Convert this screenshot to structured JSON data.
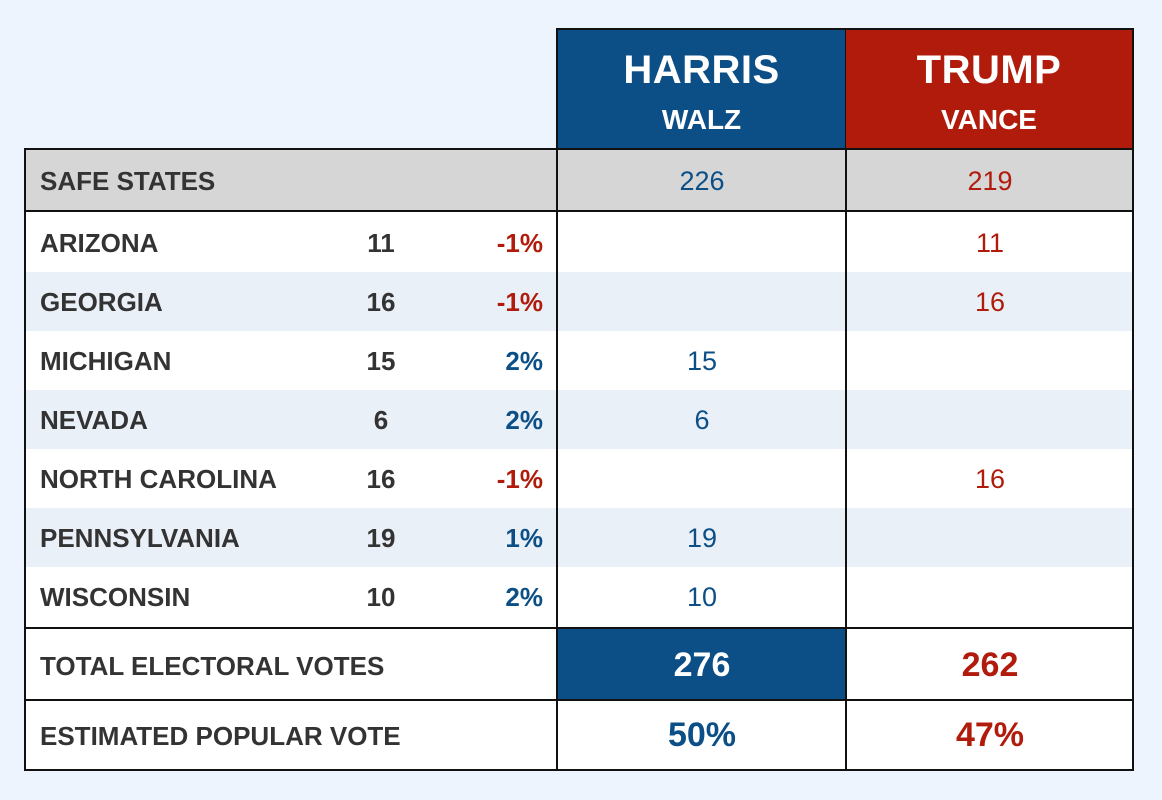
{
  "chart_data": {
    "type": "table",
    "title": "",
    "headers": {
      "harris": {
        "name": "HARRIS",
        "vp": "WALZ",
        "color": "#0c4f86"
      },
      "trump": {
        "name": "TRUMP",
        "vp": "VANCE",
        "color": "#b01b0b"
      }
    },
    "safe_states": {
      "label": "SAFE STATES",
      "harris": "226",
      "trump": "219"
    },
    "states": [
      {
        "name": "ARIZONA",
        "ev": "11",
        "margin": "-1%",
        "lean": "trump",
        "harris": "",
        "trump": "11"
      },
      {
        "name": "GEORGIA",
        "ev": "16",
        "margin": "-1%",
        "lean": "trump",
        "harris": "",
        "trump": "16"
      },
      {
        "name": "MICHIGAN",
        "ev": "15",
        "margin": "2%",
        "lean": "harris",
        "harris": "15",
        "trump": ""
      },
      {
        "name": "NEVADA",
        "ev": "6",
        "margin": "2%",
        "lean": "harris",
        "harris": "6",
        "trump": ""
      },
      {
        "name": "NORTH CAROLINA",
        "ev": "16",
        "margin": "-1%",
        "lean": "trump",
        "harris": "",
        "trump": "16"
      },
      {
        "name": "PENNSYLVANIA",
        "ev": "19",
        "margin": "1%",
        "lean": "harris",
        "harris": "19",
        "trump": ""
      },
      {
        "name": "WISCONSIN",
        "ev": "10",
        "margin": "2%",
        "lean": "harris",
        "harris": "10",
        "trump": ""
      }
    ],
    "total_electoral": {
      "label": "TOTAL ELECTORAL VOTES",
      "harris": "276",
      "trump": "262"
    },
    "popular_vote": {
      "label": "ESTIMATED POPULAR VOTE",
      "harris": "50%",
      "trump": "47%"
    }
  }
}
